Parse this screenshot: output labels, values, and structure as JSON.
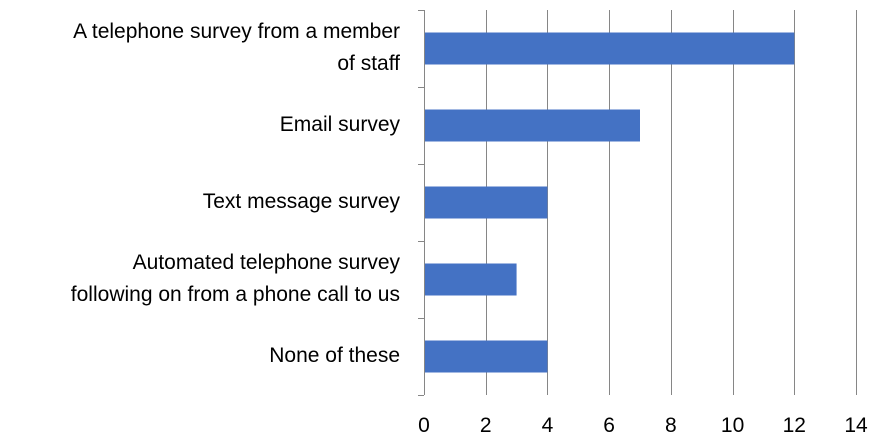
{
  "chart_data": {
    "type": "bar",
    "orientation": "horizontal",
    "categories": [
      "A telephone survey from a member of staff",
      "Email survey",
      "Text message survey",
      "Automated telephone survey following on from a phone call to us",
      "None of these"
    ],
    "category_label_lines": [
      [
        "A telephone survey from a member",
        "of staff"
      ],
      [
        "Email survey"
      ],
      [
        "Text message survey"
      ],
      [
        "Automated telephone survey",
        "following on from a phone call to us"
      ],
      [
        "None of these"
      ]
    ],
    "values": [
      12,
      7,
      4,
      3,
      4
    ],
    "xlim": [
      0,
      14
    ],
    "x_ticks": [
      0,
      2,
      4,
      6,
      8,
      10,
      12,
      14
    ],
    "x_tick_labels": [
      "0",
      "2",
      "4",
      "6",
      "8",
      "10",
      "12",
      "14"
    ],
    "title": "",
    "xlabel": "",
    "ylabel": "",
    "grid": "vertical",
    "legend": "none",
    "colors": {
      "bar": "#4472C4",
      "grid": "#868686",
      "axis": "#868686",
      "text": "#000000"
    }
  }
}
